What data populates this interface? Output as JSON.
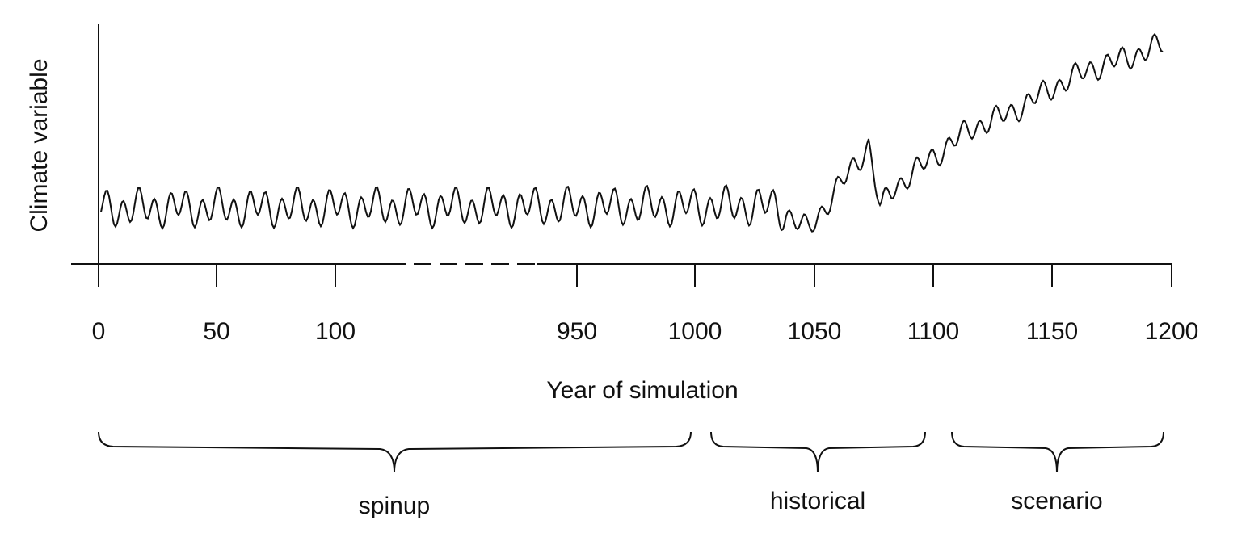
{
  "axis": {
    "y_label": "Climate variable",
    "x_label": "Year of simulation",
    "ticks": [
      "0",
      "50",
      "100",
      "950",
      "1000",
      "1050",
      "1100",
      "1150",
      "1200"
    ]
  },
  "periods": [
    "spinup",
    "historical",
    "scenario"
  ]
}
